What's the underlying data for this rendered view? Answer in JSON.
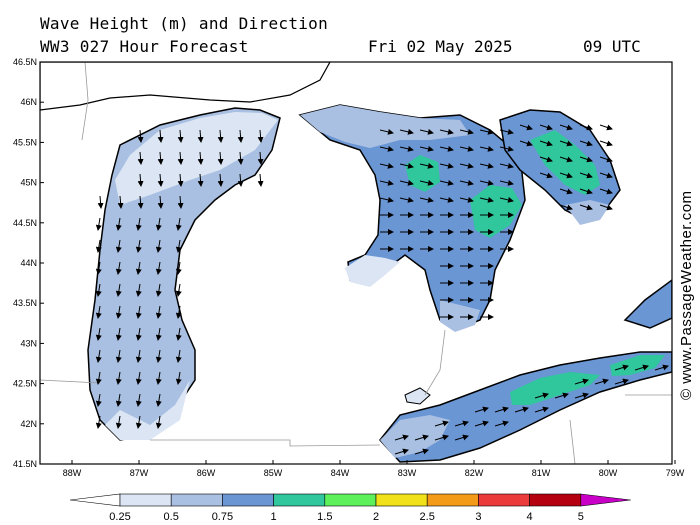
{
  "header": {
    "title_line1": "Wave Height (m) and Direction",
    "title_line2": "WW3 027 Hour Forecast",
    "date": "Fri 02 May 2025",
    "time": "09 UTC"
  },
  "credit": "© www.PassageWeather.com",
  "map": {
    "lat_labels": [
      "46.5N",
      "46N",
      "45.5N",
      "45N",
      "44.5N",
      "44N",
      "43.5N",
      "43N",
      "42.5N",
      "42N",
      "41.5N"
    ],
    "lon_labels": [
      "88W",
      "87W",
      "86W",
      "85W",
      "84W",
      "83W",
      "82W",
      "81W",
      "80W",
      "79W"
    ],
    "lake_water_color": "#ffffff",
    "land_color": "#ffffff"
  },
  "legend": {
    "labels": [
      "0.25",
      "0.5",
      "0.75",
      "1",
      "1.5",
      "2",
      "2.5",
      "3",
      "4",
      "5"
    ],
    "colors": [
      "#ffffff",
      "#dbe5f4",
      "#a9c0e2",
      "#6b96d4",
      "#2fc79b",
      "#5ef05a",
      "#f0e11a",
      "#f39a19",
      "#ec3b3b",
      "#b4000f",
      "#c800c8"
    ]
  }
}
